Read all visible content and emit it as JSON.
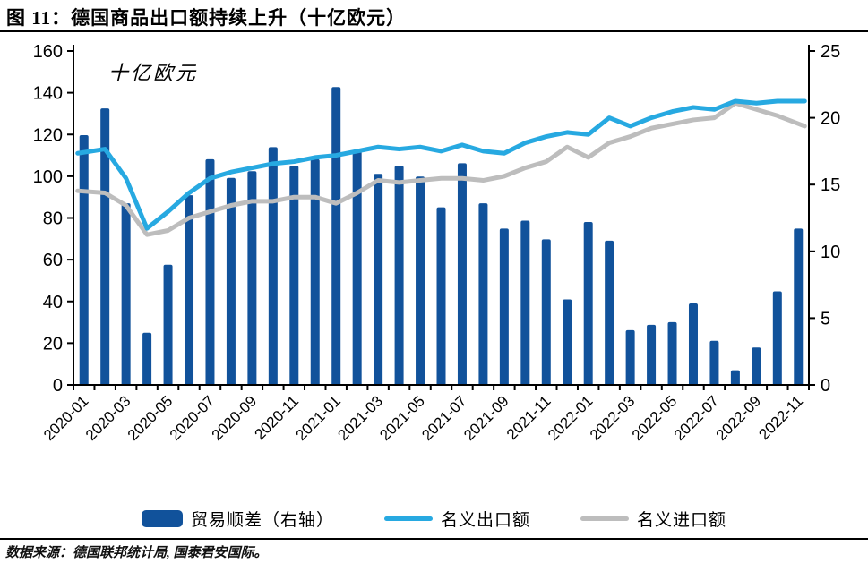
{
  "header": {
    "title": "图 11：德国商品出口额持续上升（十亿欧元）"
  },
  "chart_data": {
    "type": "bar+line combo",
    "title": "图 11：德国商品出口额持续上升（十亿欧元）",
    "unit_label": "十亿欧元",
    "grid": "off",
    "legend_position": "bottom",
    "categories": [
      "2020-01",
      "2020-02",
      "2020-03",
      "2020-04",
      "2020-05",
      "2020-06",
      "2020-07",
      "2020-08",
      "2020-09",
      "2020-10",
      "2020-11",
      "2020-12",
      "2021-01",
      "2021-02",
      "2021-03",
      "2021-04",
      "2021-05",
      "2021-06",
      "2021-07",
      "2021-08",
      "2021-09",
      "2021-10",
      "2021-11",
      "2021-12",
      "2022-01",
      "2022-02",
      "2022-03",
      "2022-04",
      "2022-05",
      "2022-06",
      "2022-07",
      "2022-08",
      "2022-09",
      "2022-10",
      "2022-11"
    ],
    "x_tick_labels": [
      "2020-01",
      "2020-03",
      "2020-05",
      "2020-07",
      "2020-09",
      "2020-11",
      "2021-01",
      "2021-03",
      "2021-05",
      "2021-07",
      "2021-09",
      "2021-11",
      "2022-01",
      "2022-03",
      "2022-05",
      "2022-07",
      "2022-09",
      "2022-11"
    ],
    "left_axis": {
      "min": 0,
      "max": 160,
      "step": 20,
      "ticks": [
        0,
        20,
        40,
        60,
        80,
        100,
        120,
        140,
        160
      ]
    },
    "right_axis": {
      "min": 0,
      "max": 25,
      "step": 5,
      "ticks": [
        0,
        5,
        10,
        15,
        20,
        25
      ]
    },
    "series": [
      {
        "name": "贸易顺差（右轴）",
        "type": "bar",
        "axis": "right",
        "color": "#11529B",
        "values": [
          18.7,
          20.7,
          13.6,
          3.9,
          9.0,
          14.2,
          16.9,
          15.5,
          16.0,
          17.8,
          16.4,
          16.9,
          22.3,
          17.5,
          15.8,
          16.4,
          15.6,
          13.3,
          16.6,
          13.6,
          11.7,
          12.3,
          10.9,
          6.4,
          12.2,
          10.8,
          4.1,
          4.5,
          4.7,
          6.1,
          3.3,
          1.1,
          2.8,
          7.0,
          11.7
        ]
      },
      {
        "name": "名义出口额",
        "type": "line",
        "axis": "left",
        "color": "#27A9E1",
        "values": [
          111,
          113,
          99,
          75,
          83,
          92,
          99,
          102,
          104,
          106,
          107,
          109,
          110,
          112,
          114,
          113,
          114,
          112,
          115,
          112,
          111,
          116,
          119,
          121,
          120,
          128,
          124,
          128,
          131,
          133,
          132,
          136,
          135,
          136,
          136
        ]
      },
      {
        "name": "名义进口额",
        "type": "line",
        "axis": "left",
        "color": "#BDBDBD",
        "values": [
          93,
          92,
          86,
          72,
          74,
          80,
          83,
          86,
          88,
          88,
          90,
          90,
          87,
          92,
          98,
          97,
          98,
          99,
          99,
          98,
          100,
          104,
          107,
          114,
          109,
          116,
          119,
          123,
          125,
          127,
          128,
          135,
          132,
          129,
          124
        ]
      }
    ]
  },
  "footer": {
    "source": "数据来源：德国联邦统计局, 国泰君安国际。"
  }
}
